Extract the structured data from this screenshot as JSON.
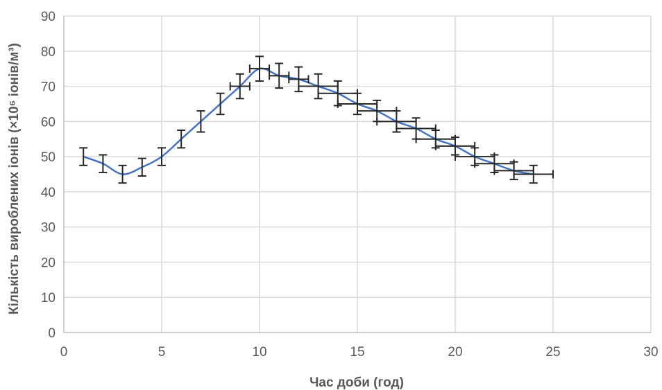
{
  "chart_data": {
    "type": "line",
    "xlabel": "Час доби (год)",
    "ylabel": "Кількість вироблених іонів (×10⁶ іонів/м³)",
    "xlim": [
      0,
      30
    ],
    "ylim": [
      0,
      90
    ],
    "x_ticks": [
      0,
      5,
      10,
      15,
      20,
      25,
      30
    ],
    "y_ticks": [
      0,
      10,
      20,
      30,
      40,
      50,
      60,
      70,
      80,
      90
    ],
    "grid": true,
    "legend": "none",
    "colors": {
      "series": "#4472c4",
      "error_bars": "#262626",
      "grid": "#d9d9d9",
      "text": "#595959"
    },
    "series": [
      {
        "x": [
          1,
          2,
          3,
          4,
          5,
          6,
          7,
          8,
          9,
          10,
          11,
          12,
          13,
          14,
          15,
          16,
          17,
          18,
          19,
          20,
          21,
          22,
          23,
          24
        ],
        "y": [
          50,
          48,
          45,
          47,
          50,
          55,
          60,
          65,
          70,
          75,
          73,
          72,
          70,
          68,
          65,
          63,
          60,
          58,
          55,
          53,
          50,
          48,
          46,
          45
        ],
        "y_error": [
          2.5,
          2.5,
          2.5,
          2.5,
          2.5,
          2.5,
          3,
          3,
          3.5,
          3.5,
          3.5,
          3.5,
          3.5,
          3.5,
          3,
          3,
          3,
          3,
          2.5,
          2.5,
          2.5,
          2.5,
          2.5,
          2.5
        ],
        "x_error": [
          0,
          0,
          0,
          0,
          0,
          0,
          0,
          0,
          0.5,
          0.5,
          0.5,
          0.5,
          1,
          1,
          1,
          1,
          1,
          1,
          1,
          1,
          1,
          1,
          1,
          1
        ]
      }
    ]
  }
}
